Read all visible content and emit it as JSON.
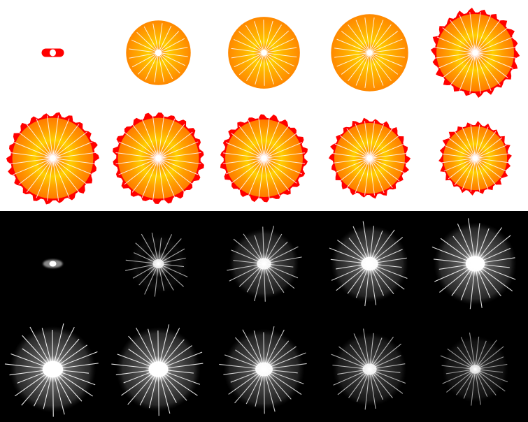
{
  "sprite_sheet": {
    "description_free": true,
    "columns": 5,
    "rows_per_panel": 2,
    "panels": [
      {
        "mode": "color",
        "background": "#ffffff",
        "palette": {
          "outer": "#ff0000",
          "mid": "#ff8800",
          "inner": "#ffd000",
          "core": "#ffffff"
        },
        "frames": [
          {
            "size": 0.06,
            "spikes": 0,
            "rays": 0,
            "core": 0.35
          },
          {
            "size": 0.36,
            "spikes": 0,
            "rays": 20,
            "core": 0.1
          },
          {
            "size": 0.4,
            "spikes": 0,
            "rays": 22,
            "core": 0.08
          },
          {
            "size": 0.43,
            "spikes": 0,
            "rays": 24,
            "core": 0.07
          },
          {
            "size": 0.45,
            "spikes": 22,
            "rays": 24,
            "core": 0.07
          },
          {
            "size": 0.47,
            "spikes": 22,
            "rays": 24,
            "core": 0.07
          },
          {
            "size": 0.47,
            "spikes": 22,
            "rays": 24,
            "core": 0.07
          },
          {
            "size": 0.45,
            "spikes": 22,
            "rays": 24,
            "core": 0.07
          },
          {
            "size": 0.41,
            "spikes": 22,
            "rays": 24,
            "core": 0.07
          },
          {
            "size": 0.37,
            "spikes": 22,
            "rays": 24,
            "core": 0.07
          }
        ]
      },
      {
        "mode": "grayscale",
        "background": "#000000",
        "palette": {
          "glow": "#ffffff",
          "ray": "#ffffff"
        },
        "frames": [
          {
            "size": 0.05,
            "brightness": 1.0,
            "rays": 0
          },
          {
            "size": 0.34,
            "brightness": 0.55,
            "rays": 20
          },
          {
            "size": 0.39,
            "brightness": 0.7,
            "rays": 22
          },
          {
            "size": 0.43,
            "brightness": 0.85,
            "rays": 24
          },
          {
            "size": 0.46,
            "brightness": 0.95,
            "rays": 24
          },
          {
            "size": 0.48,
            "brightness": 1.0,
            "rays": 26
          },
          {
            "size": 0.47,
            "brightness": 0.95,
            "rays": 26
          },
          {
            "size": 0.45,
            "brightness": 0.8,
            "rays": 26
          },
          {
            "size": 0.41,
            "brightness": 0.6,
            "rays": 24
          },
          {
            "size": 0.37,
            "brightness": 0.4,
            "rays": 24
          }
        ]
      }
    ]
  }
}
